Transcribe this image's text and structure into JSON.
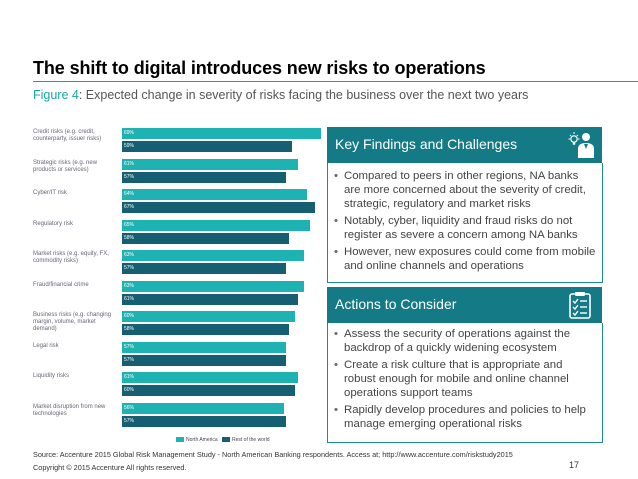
{
  "title": "The shift to digital introduces new risks to operations",
  "subtitle": {
    "figure_label": "Figure 4",
    "text": ": Expected change in severity of risks facing the business over the next two years"
  },
  "chart_data": {
    "type": "bar",
    "orientation": "horizontal",
    "categories": [
      "Credit risks (e.g. credit, counterparty, issuer risks)",
      "Strategic risks (e.g. new products or services)",
      "Cyber/IT risk",
      "Regulatory risk",
      "Market risks (e.g. equity, FX, commodity risks)",
      "Fraud/financial crime",
      "Business risks (e.g. changing margin, volume, market demand)",
      "Legal risk",
      "Liquidity risks",
      "Market disruption from new technologies"
    ],
    "series": [
      {
        "name": "North America",
        "color": "#1fb2b2",
        "values": [
          69,
          61,
          64,
          65,
          63,
          63,
          60,
          57,
          61,
          56
        ]
      },
      {
        "name": "Rest of the world",
        "color": "#165e72",
        "values": [
          59,
          57,
          67,
          58,
          57,
          61,
          58,
          57,
          60,
          57
        ]
      }
    ],
    "value_labels": {
      "North America": [
        "69%",
        "61%",
        "64%",
        "65%",
        "63%",
        "63%",
        "60%",
        "57%",
        "61%",
        "56%"
      ],
      "Rest of the world": [
        "59%",
        "57%",
        "67%",
        "58%",
        "57%",
        "61%",
        "58%",
        "57%",
        "60%",
        "57%"
      ]
    },
    "xlim": [
      0,
      70
    ],
    "grid": false,
    "legend_position": "bottom"
  },
  "findings": {
    "heading": "Key Findings and Challenges",
    "icon": "lightbulb-person-icon",
    "bullets": [
      "Compared to peers in other regions, NA banks are more concerned about the severity of credit, strategic, regulatory and market risks",
      "Notably, cyber, liquidity and fraud risks do not register as severe a concern among NA banks",
      "However, new exposures could come from mobile and online channels and operations"
    ]
  },
  "actions": {
    "heading": "Actions to Consider",
    "icon": "checklist-clipboard-icon",
    "bullets": [
      "Assess the security of operations against the backdrop of a quickly widening ecosystem",
      "Create a risk culture that is appropriate and robust enough for mobile and online channel operations support teams",
      "Rapidly develop procedures and policies to help manage emerging operational risks"
    ]
  },
  "source": "Source: Accenture 2015 Global Risk Management Study - North American Banking respondents. Access at; http://www.accenture.com/riskstudy2015",
  "copyright": "Copyright © 2015 Accenture All rights reserved.",
  "page_number": "17",
  "colors": {
    "accent": "#147a86",
    "teal": "#1fb2b2",
    "dark_teal": "#165e72"
  }
}
